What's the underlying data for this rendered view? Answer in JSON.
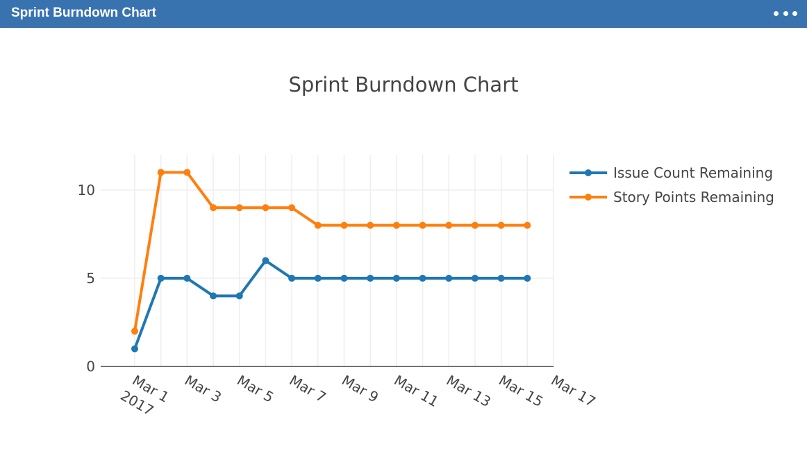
{
  "window": {
    "title": "Sprint Burndown Chart",
    "menu_icon": "ellipsis-horizontal-icon"
  },
  "colors": {
    "header_bg": "#3873b0",
    "series_issue": "#1f77b4",
    "series_points": "#ff7f0e",
    "grid": "#eeeeee",
    "text": "#444444"
  },
  "chart_data": {
    "type": "line",
    "title": "Sprint Burndown Chart",
    "xlabel": "",
    "ylabel": "",
    "x_unit": "day of March 2017",
    "x": [
      1,
      2,
      3,
      4,
      5,
      6,
      7,
      8,
      9,
      10,
      11,
      12,
      13,
      14,
      15,
      16
    ],
    "xlim": [
      -0.3,
      17
    ],
    "ylim": [
      0,
      12
    ],
    "grid": true,
    "x_ticks": [
      {
        "value": 1,
        "label": "Mar 1",
        "sublabel": "2017"
      },
      {
        "value": 3,
        "label": "Mar 3"
      },
      {
        "value": 5,
        "label": "Mar 5"
      },
      {
        "value": 7,
        "label": "Mar 7"
      },
      {
        "value": 9,
        "label": "Mar 9"
      },
      {
        "value": 11,
        "label": "Mar 11"
      },
      {
        "value": 13,
        "label": "Mar 13"
      },
      {
        "value": 15,
        "label": "Mar 15"
      },
      {
        "value": 17,
        "label": "Mar 17"
      }
    ],
    "y_ticks": [
      0,
      5,
      10
    ],
    "legend_position": "top-right",
    "series": [
      {
        "name": "Issue Count Remaining",
        "color": "#1f77b4",
        "values": [
          1,
          5,
          5,
          4,
          4,
          6,
          5,
          5,
          5,
          5,
          5,
          5,
          5,
          5,
          5,
          5
        ]
      },
      {
        "name": "Story Points Remaining",
        "color": "#ff7f0e",
        "values": [
          2,
          11,
          11,
          9,
          9,
          9,
          9,
          8,
          8,
          8,
          8,
          8,
          8,
          8,
          8,
          8
        ]
      }
    ]
  }
}
